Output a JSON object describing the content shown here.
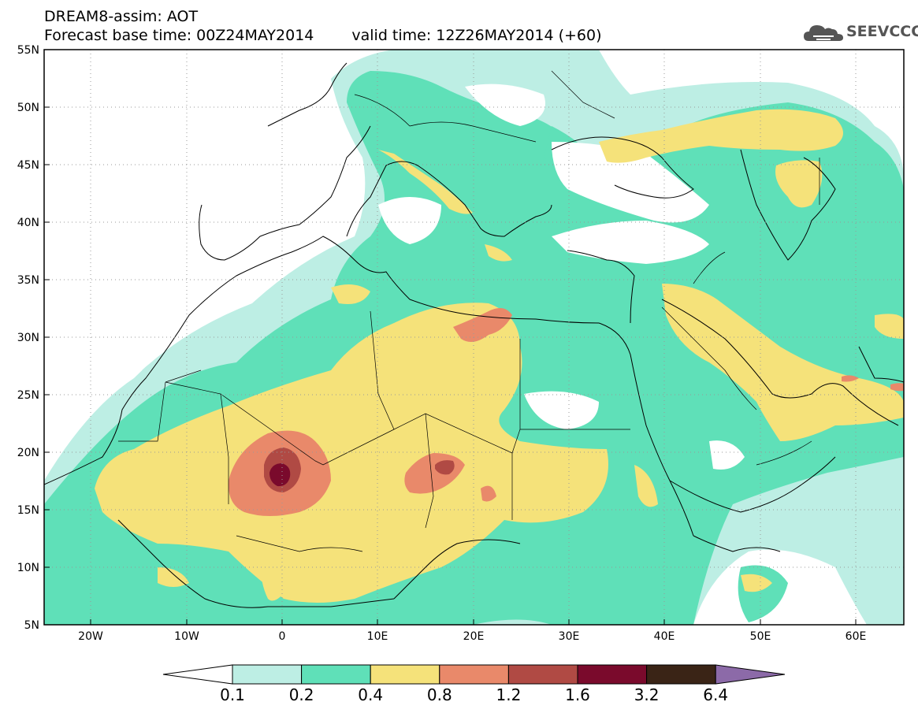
{
  "title": {
    "line1": "DREAM8-assim: AOT",
    "base_time": "Forecast base time: 00Z24MAY2014",
    "valid_time": "valid time: 12Z26MAY2014 (+60)"
  },
  "logo": {
    "text": "SEEVCCC",
    "icon": "cloud-icon"
  },
  "axes": {
    "lat_labels": [
      "55N",
      "50N",
      "45N",
      "40N",
      "35N",
      "30N",
      "25N",
      "20N",
      "15N",
      "10N",
      "5N"
    ],
    "lon_labels": [
      "20W",
      "10W",
      "0",
      "10E",
      "20E",
      "30E",
      "40E",
      "50E",
      "60E"
    ],
    "lat_range": [
      5,
      55
    ],
    "lon_range": [
      -25,
      65
    ]
  },
  "colorbar": {
    "labels": [
      "0.1",
      "0.2",
      "0.4",
      "0.8",
      "1.2",
      "1.6",
      "3.2",
      "6.4"
    ],
    "colors": [
      "#ffffff",
      "#bdeee4",
      "#5fe0b8",
      "#f5e27a",
      "#e9896a",
      "#b04a44",
      "#7a0a2c",
      "#3a2416",
      "#8c6aa8"
    ]
  }
}
